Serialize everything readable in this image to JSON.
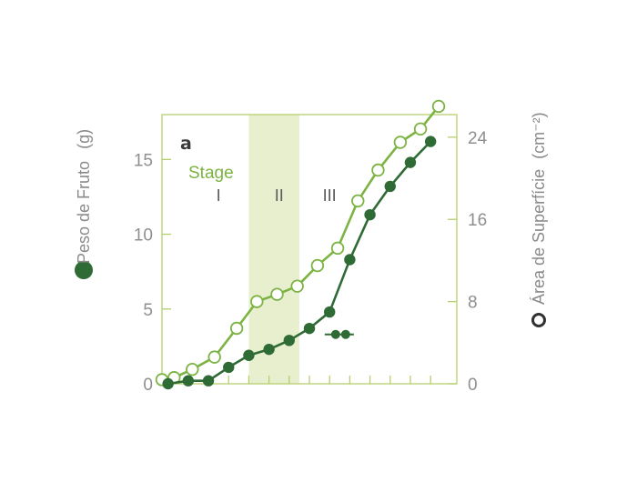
{
  "colors": {
    "dark_series": "#2f6b35",
    "light_series": "#7cb342",
    "frame": "#b5cf6c",
    "stage_band": "#e8efcf",
    "ticks_text": "#8f8f8f"
  },
  "panel_letter": "a",
  "stage": {
    "title": "Stage",
    "labels": [
      "I",
      "II",
      "III"
    ],
    "label_x": [
      2.5,
      5.5,
      8.0
    ],
    "band": [
      4.0,
      6.5
    ]
  },
  "chart_data": {
    "type": "line",
    "title": "",
    "x": [
      0,
      1,
      2,
      3,
      4,
      5,
      6,
      7,
      8,
      9,
      10,
      11,
      12,
      13,
      14
    ],
    "xlim": [
      -0.3,
      14.3
    ],
    "left_axis": {
      "label": "Peso de Fruto",
      "unit": "(g)",
      "marker": "filled-circle",
      "ylim": [
        0,
        18
      ],
      "ticks": [
        0,
        5,
        10,
        15
      ]
    },
    "right_axis": {
      "label": "Área de Superfície",
      "unit": "(cm⁻²)",
      "marker": "open-circle",
      "ylim": [
        0,
        26.2
      ],
      "ticks": [
        0,
        8,
        16,
        24
      ]
    },
    "series": [
      {
        "axis": "left",
        "marker": "filled",
        "x": [
          0,
          1,
          2,
          3,
          4,
          5,
          6,
          7,
          8,
          9,
          10,
          11,
          12,
          13,
          14
        ],
        "values": [
          0.0,
          0.2,
          0.2,
          1.1,
          1.9,
          2.3,
          2.9,
          3.7,
          4.8,
          8.3,
          11.3,
          13.2,
          14.8,
          16.2,
          null
        ]
      },
      {
        "axis": "right",
        "marker": "open",
        "x": [
          -0.3,
          0.3,
          1.2,
          2.3,
          3.4,
          4.4,
          5.4,
          6.4,
          7.4,
          8.4,
          9.4,
          10.4,
          11.5,
          12.5,
          13.4,
          14.2
        ],
        "values": [
          0.4,
          0.6,
          1.4,
          2.6,
          5.4,
          8.0,
          8.7,
          9.5,
          11.5,
          13.2,
          17.8,
          20.8,
          23.5,
          24.8,
          27.0,
          null
        ]
      }
    ],
    "annotation": {
      "x": 8.3,
      "y": 3.3,
      "axis": "left"
    }
  }
}
